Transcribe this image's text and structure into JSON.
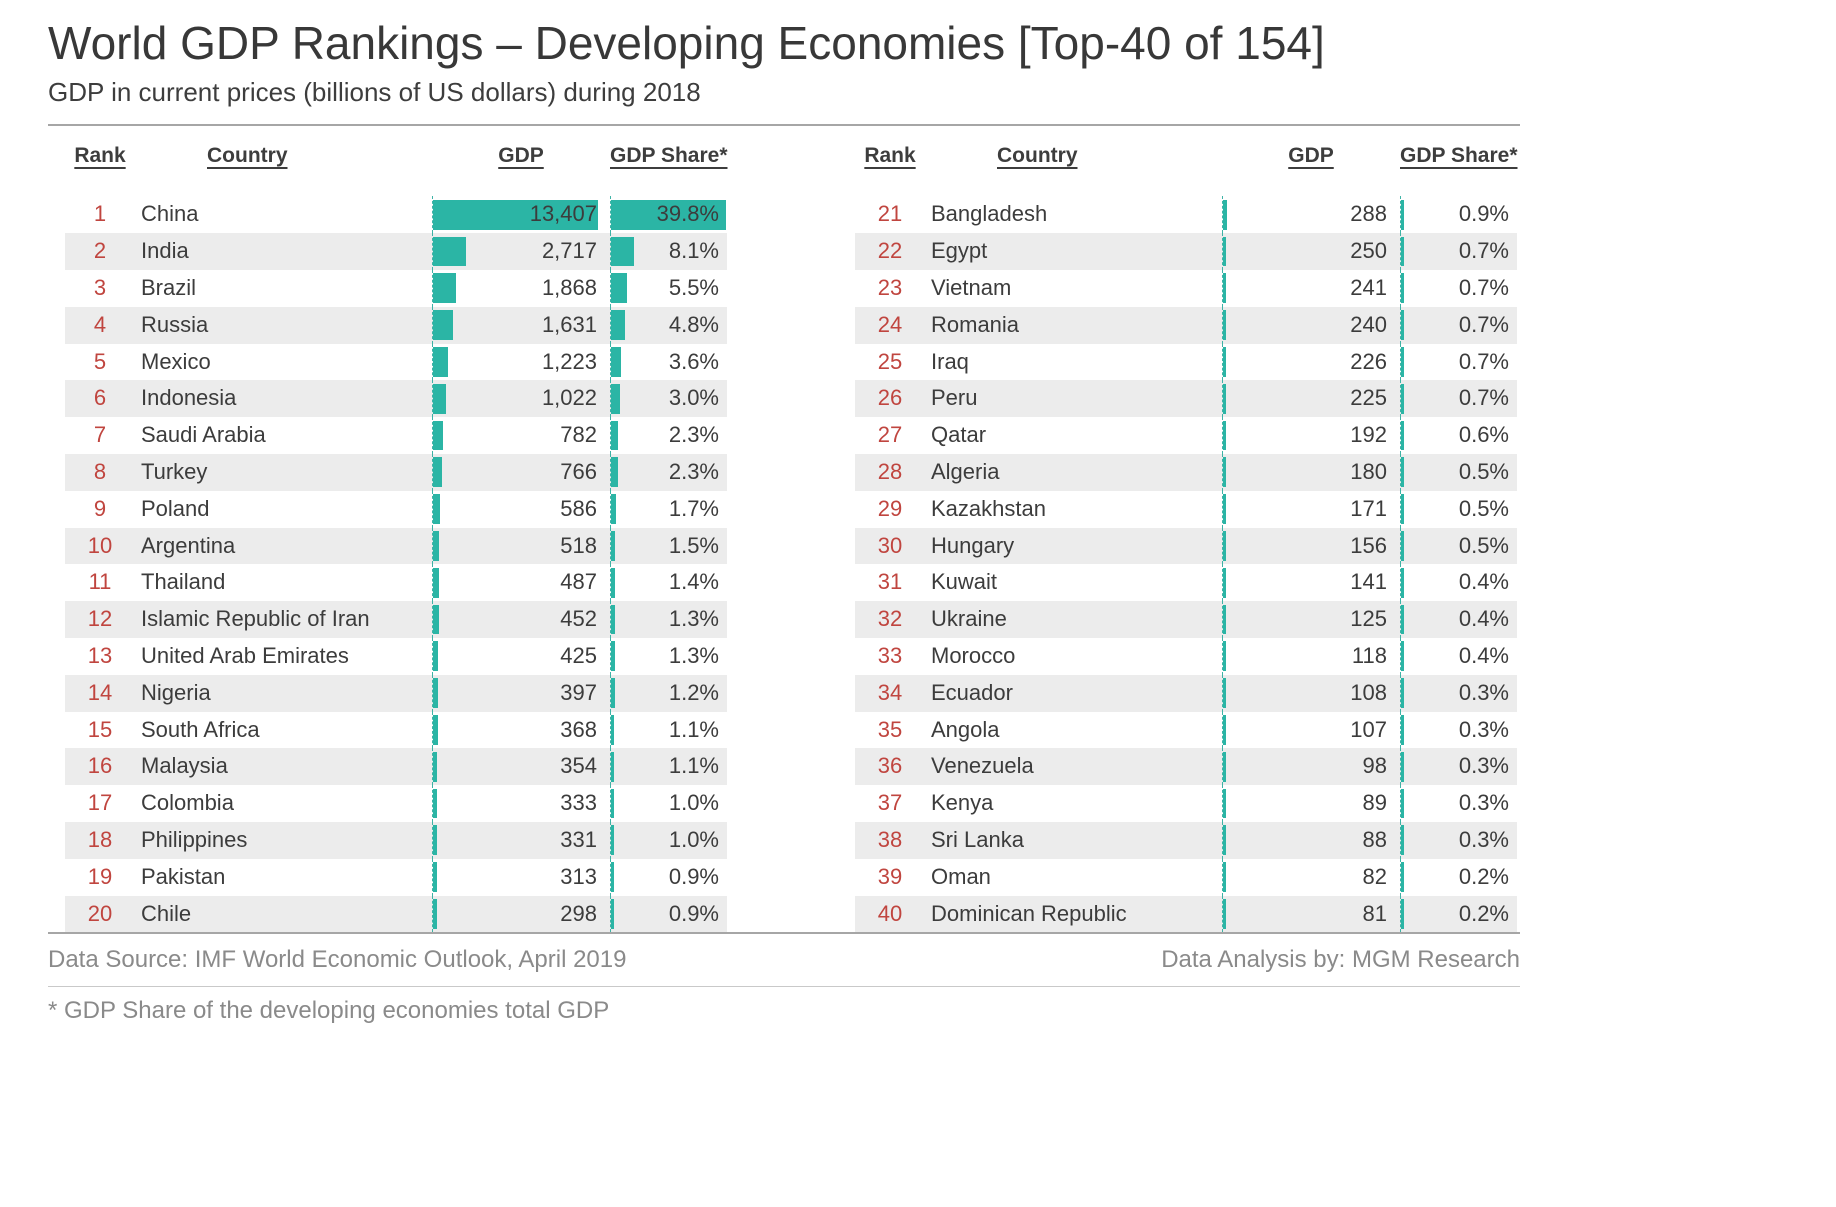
{
  "page": {
    "title": "World GDP Rankings – Developing Economies [Top-40 of 154]",
    "subtitle": "GDP in current prices (billions of US dollars) during 2018",
    "footer_left": "Data Source: IMF World Economic Outlook, April 2019",
    "footer_right": "Data Analysis by: MGM Research",
    "footnote": "* GDP Share of the developing economies total GDP"
  },
  "table": {
    "headers": {
      "rank": "Rank",
      "country": "Country",
      "gdp": "GDP",
      "share": "GDP Share*"
    }
  },
  "colors": {
    "bar": "#2bb5a5",
    "rank_text": "#c0453f",
    "row_alt": "#ececec",
    "dashed_guide": "#3fb3a6"
  },
  "chart_data": {
    "type": "table",
    "title": "World GDP Rankings – Developing Economies [Top-40 of 154]",
    "subtitle": "GDP in current prices (billions of US dollars) during 2018",
    "columns": [
      "Rank",
      "Country",
      "GDP",
      "GDP Share*"
    ],
    "gdp_unit": "billions of US dollars",
    "year": 2018,
    "max_gdp": 13407,
    "max_share_pct": 39.8,
    "bars": "GDP and GDP Share cells contain teal data bars proportional to value",
    "rows": [
      {
        "rank": 1,
        "country": "China",
        "gdp": "13,407",
        "gdp_value": 13407,
        "share": "39.8%",
        "share_value": 39.8
      },
      {
        "rank": 2,
        "country": "India",
        "gdp": "2,717",
        "gdp_value": 2717,
        "share": "8.1%",
        "share_value": 8.1
      },
      {
        "rank": 3,
        "country": "Brazil",
        "gdp": "1,868",
        "gdp_value": 1868,
        "share": "5.5%",
        "share_value": 5.5
      },
      {
        "rank": 4,
        "country": "Russia",
        "gdp": "1,631",
        "gdp_value": 1631,
        "share": "4.8%",
        "share_value": 4.8
      },
      {
        "rank": 5,
        "country": "Mexico",
        "gdp": "1,223",
        "gdp_value": 1223,
        "share": "3.6%",
        "share_value": 3.6
      },
      {
        "rank": 6,
        "country": "Indonesia",
        "gdp": "1,022",
        "gdp_value": 1022,
        "share": "3.0%",
        "share_value": 3.0
      },
      {
        "rank": 7,
        "country": "Saudi Arabia",
        "gdp": "782",
        "gdp_value": 782,
        "share": "2.3%",
        "share_value": 2.3
      },
      {
        "rank": 8,
        "country": "Turkey",
        "gdp": "766",
        "gdp_value": 766,
        "share": "2.3%",
        "share_value": 2.3
      },
      {
        "rank": 9,
        "country": "Poland",
        "gdp": "586",
        "gdp_value": 586,
        "share": "1.7%",
        "share_value": 1.7
      },
      {
        "rank": 10,
        "country": "Argentina",
        "gdp": "518",
        "gdp_value": 518,
        "share": "1.5%",
        "share_value": 1.5
      },
      {
        "rank": 11,
        "country": "Thailand",
        "gdp": "487",
        "gdp_value": 487,
        "share": "1.4%",
        "share_value": 1.4
      },
      {
        "rank": 12,
        "country": "Islamic Republic of Iran",
        "gdp": "452",
        "gdp_value": 452,
        "share": "1.3%",
        "share_value": 1.3
      },
      {
        "rank": 13,
        "country": "United Arab Emirates",
        "gdp": "425",
        "gdp_value": 425,
        "share": "1.3%",
        "share_value": 1.3
      },
      {
        "rank": 14,
        "country": "Nigeria",
        "gdp": "397",
        "gdp_value": 397,
        "share": "1.2%",
        "share_value": 1.2
      },
      {
        "rank": 15,
        "country": "South Africa",
        "gdp": "368",
        "gdp_value": 368,
        "share": "1.1%",
        "share_value": 1.1
      },
      {
        "rank": 16,
        "country": "Malaysia",
        "gdp": "354",
        "gdp_value": 354,
        "share": "1.1%",
        "share_value": 1.1
      },
      {
        "rank": 17,
        "country": "Colombia",
        "gdp": "333",
        "gdp_value": 333,
        "share": "1.0%",
        "share_value": 1.0
      },
      {
        "rank": 18,
        "country": "Philippines",
        "gdp": "331",
        "gdp_value": 331,
        "share": "1.0%",
        "share_value": 1.0
      },
      {
        "rank": 19,
        "country": "Pakistan",
        "gdp": "313",
        "gdp_value": 313,
        "share": "0.9%",
        "share_value": 0.9
      },
      {
        "rank": 20,
        "country": "Chile",
        "gdp": "298",
        "gdp_value": 298,
        "share": "0.9%",
        "share_value": 0.9
      },
      {
        "rank": 21,
        "country": "Bangladesh",
        "gdp": "288",
        "gdp_value": 288,
        "share": "0.9%",
        "share_value": 0.9
      },
      {
        "rank": 22,
        "country": "Egypt",
        "gdp": "250",
        "gdp_value": 250,
        "share": "0.7%",
        "share_value": 0.7
      },
      {
        "rank": 23,
        "country": "Vietnam",
        "gdp": "241",
        "gdp_value": 241,
        "share": "0.7%",
        "share_value": 0.7
      },
      {
        "rank": 24,
        "country": "Romania",
        "gdp": "240",
        "gdp_value": 240,
        "share": "0.7%",
        "share_value": 0.7
      },
      {
        "rank": 25,
        "country": "Iraq",
        "gdp": "226",
        "gdp_value": 226,
        "share": "0.7%",
        "share_value": 0.7
      },
      {
        "rank": 26,
        "country": "Peru",
        "gdp": "225",
        "gdp_value": 225,
        "share": "0.7%",
        "share_value": 0.7
      },
      {
        "rank": 27,
        "country": "Qatar",
        "gdp": "192",
        "gdp_value": 192,
        "share": "0.6%",
        "share_value": 0.6
      },
      {
        "rank": 28,
        "country": "Algeria",
        "gdp": "180",
        "gdp_value": 180,
        "share": "0.5%",
        "share_value": 0.5
      },
      {
        "rank": 29,
        "country": "Kazakhstan",
        "gdp": "171",
        "gdp_value": 171,
        "share": "0.5%",
        "share_value": 0.5
      },
      {
        "rank": 30,
        "country": "Hungary",
        "gdp": "156",
        "gdp_value": 156,
        "share": "0.5%",
        "share_value": 0.5
      },
      {
        "rank": 31,
        "country": "Kuwait",
        "gdp": "141",
        "gdp_value": 141,
        "share": "0.4%",
        "share_value": 0.4
      },
      {
        "rank": 32,
        "country": "Ukraine",
        "gdp": "125",
        "gdp_value": 125,
        "share": "0.4%",
        "share_value": 0.4
      },
      {
        "rank": 33,
        "country": "Morocco",
        "gdp": "118",
        "gdp_value": 118,
        "share": "0.4%",
        "share_value": 0.4
      },
      {
        "rank": 34,
        "country": "Ecuador",
        "gdp": "108",
        "gdp_value": 108,
        "share": "0.3%",
        "share_value": 0.3
      },
      {
        "rank": 35,
        "country": "Angola",
        "gdp": "107",
        "gdp_value": 107,
        "share": "0.3%",
        "share_value": 0.3
      },
      {
        "rank": 36,
        "country": "Venezuela",
        "gdp": "98",
        "gdp_value": 98,
        "share": "0.3%",
        "share_value": 0.3
      },
      {
        "rank": 37,
        "country": "Kenya",
        "gdp": "89",
        "gdp_value": 89,
        "share": "0.3%",
        "share_value": 0.3
      },
      {
        "rank": 38,
        "country": "Sri Lanka",
        "gdp": "88",
        "gdp_value": 88,
        "share": "0.3%",
        "share_value": 0.3
      },
      {
        "rank": 39,
        "country": "Oman",
        "gdp": "82",
        "gdp_value": 82,
        "share": "0.2%",
        "share_value": 0.2
      },
      {
        "rank": 40,
        "country": "Dominican Republic",
        "gdp": "81",
        "gdp_value": 81,
        "share": "0.2%",
        "share_value": 0.2
      }
    ]
  }
}
